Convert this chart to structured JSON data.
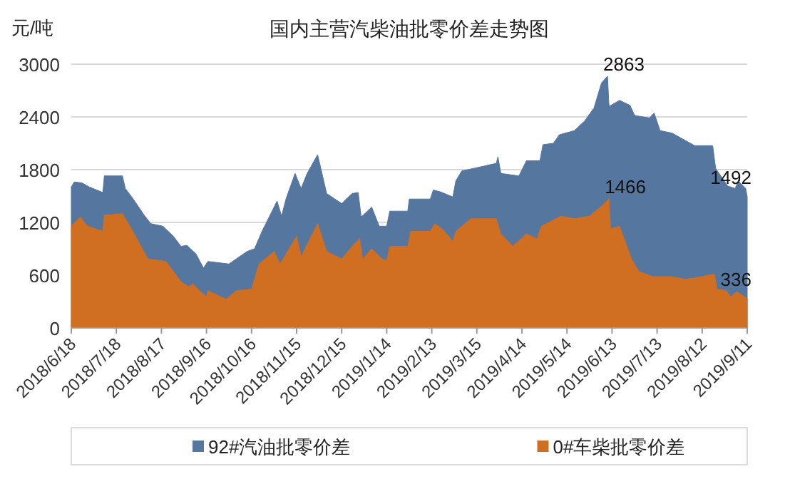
{
  "chart_data": {
    "type": "area",
    "title": "国内主营汽柴油批零价差走势图",
    "ylabel": "元/吨",
    "legend": "bottom",
    "grid": "y",
    "xlim": [
      "2018-06-18",
      "2019-09-11"
    ],
    "xticks": [
      {
        "value": "2018-06-18",
        "label": "2018/6/18"
      },
      {
        "value": "2018-07-18",
        "label": "2018/7/18"
      },
      {
        "value": "2018-08-17",
        "label": "2018/8/17"
      },
      {
        "value": "2018-09-16",
        "label": "2018/9/16"
      },
      {
        "value": "2018-10-16",
        "label": "2018/10/16"
      },
      {
        "value": "2018-11-15",
        "label": "2018/11/15"
      },
      {
        "value": "2018-12-15",
        "label": "2018/12/15"
      },
      {
        "value": "2019-01-14",
        "label": "2019/1/14"
      },
      {
        "value": "2019-02-13",
        "label": "2019/2/13"
      },
      {
        "value": "2019-03-15",
        "label": "2019/3/15"
      },
      {
        "value": "2019-04-14",
        "label": "2019/4/14"
      },
      {
        "value": "2019-05-14",
        "label": "2019/5/14"
      },
      {
        "value": "2019-06-13",
        "label": "2019/6/13"
      },
      {
        "value": "2019-07-13",
        "label": "2019/7/13"
      },
      {
        "value": "2019-08-12",
        "label": "2019/8/12"
      },
      {
        "value": "2019-09-11",
        "label": "2019/9/11"
      }
    ],
    "ylim": [
      0,
      3000
    ],
    "yticks": [
      0,
      600,
      1200,
      1800,
      2400,
      3000
    ],
    "series": [
      {
        "name": "92#汽油批零价差",
        "color": "#55779f",
        "x": [
          "2018-06-18",
          "2018-06-20",
          "2018-06-25",
          "2018-06-30",
          "2018-07-09",
          "2018-07-10",
          "2018-07-22",
          "2018-07-24",
          "2018-07-29",
          "2018-08-06",
          "2018-08-10",
          "2018-08-18",
          "2018-08-25",
          "2018-08-30",
          "2018-09-03",
          "2018-09-09",
          "2018-09-14",
          "2018-09-17",
          "2018-10-01",
          "2018-10-13",
          "2018-10-18",
          "2018-10-23",
          "2018-10-28",
          "2018-11-02",
          "2018-11-05",
          "2018-11-08",
          "2018-11-14",
          "2018-11-18",
          "2018-11-22",
          "2018-11-29",
          "2018-12-05",
          "2018-12-10",
          "2018-12-15",
          "2018-12-22",
          "2018-12-26",
          "2018-12-28",
          "2019-01-04",
          "2019-01-09",
          "2019-01-14",
          "2019-01-16",
          "2019-01-28",
          "2019-01-29",
          "2019-02-12",
          "2019-02-14",
          "2019-02-19",
          "2019-02-27",
          "2019-03-01",
          "2019-03-05",
          "2019-03-13",
          "2019-03-28",
          "2019-03-29",
          "2019-03-31",
          "2019-04-12",
          "2019-04-17",
          "2019-04-26",
          "2019-04-28",
          "2019-05-05",
          "2019-05-09",
          "2019-05-19",
          "2019-05-26",
          "2019-06-01",
          "2019-06-06",
          "2019-06-10",
          "2019-06-11",
          "2019-06-18",
          "2019-06-25",
          "2019-06-28",
          "2019-07-08",
          "2019-07-11",
          "2019-07-15",
          "2019-07-23",
          "2019-08-01",
          "2019-08-07",
          "2019-08-19",
          "2019-08-21",
          "2019-08-29",
          "2019-09-03",
          "2019-09-05",
          "2019-09-10",
          "2019-09-11"
        ],
        "values": [
          1603,
          1660,
          1650,
          1603,
          1540,
          1729,
          1729,
          1586,
          1471,
          1271,
          1185,
          1157,
          1042,
          928,
          939,
          842,
          681,
          756,
          727,
          870,
          899,
          1099,
          1271,
          1443,
          1271,
          1471,
          1757,
          1586,
          1757,
          1970,
          1529,
          1471,
          1414,
          1529,
          1540,
          1260,
          1374,
          1157,
          1157,
          1328,
          1328,
          1466,
          1466,
          1569,
          1546,
          1489,
          1672,
          1786,
          1815,
          1872,
          1947,
          1757,
          1729,
          1901,
          1901,
          2084,
          2101,
          2198,
          2244,
          2358,
          2502,
          2788,
          2863,
          2519,
          2588,
          2531,
          2416,
          2388,
          2445,
          2244,
          2216,
          2130,
          2073,
          2073,
          1815,
          1614,
          1586,
          1672,
          1586,
          1492
        ]
      },
      {
        "name": "0#车柴批零价差",
        "color": "#d06e22",
        "x": [
          "2018-06-18",
          "2018-06-24",
          "2018-06-29",
          "2018-07-09",
          "2018-07-10",
          "2018-07-22",
          "2018-07-29",
          "2018-08-08",
          "2018-08-20",
          "2018-08-30",
          "2018-09-04",
          "2018-09-07",
          "2018-09-12",
          "2018-09-16",
          "2018-09-17",
          "2018-09-29",
          "2018-10-06",
          "2018-10-16",
          "2018-10-21",
          "2018-10-31",
          "2018-11-04",
          "2018-11-15",
          "2018-11-18",
          "2018-11-29",
          "2018-12-05",
          "2018-12-15",
          "2018-12-22",
          "2018-12-27",
          "2018-12-29",
          "2019-01-04",
          "2019-01-11",
          "2019-01-14",
          "2019-01-16",
          "2019-01-28",
          "2019-01-30",
          "2019-02-12",
          "2019-02-15",
          "2019-02-20",
          "2019-02-27",
          "2019-03-01",
          "2019-03-11",
          "2019-03-28",
          "2019-03-31",
          "2019-04-08",
          "2019-04-17",
          "2019-04-24",
          "2019-04-27",
          "2019-05-10",
          "2019-05-19",
          "2019-05-29",
          "2019-06-06",
          "2019-06-11",
          "2019-06-12",
          "2019-06-18",
          "2019-06-26",
          "2019-07-01",
          "2019-07-10",
          "2019-07-22",
          "2019-08-01",
          "2019-08-07",
          "2019-08-20",
          "2019-08-22",
          "2019-08-28",
          "2019-08-31",
          "2019-09-04",
          "2019-09-11"
        ],
        "values": [
          1157,
          1260,
          1157,
          1099,
          1282,
          1300,
          1099,
          784,
          756,
          527,
          469,
          498,
          412,
          355,
          424,
          326,
          424,
          441,
          727,
          870,
          727,
          1042,
          813,
          1185,
          870,
          784,
          928,
          1013,
          784,
          899,
          784,
          767,
          928,
          928,
          1099,
          1099,
          1185,
          1128,
          985,
          1099,
          1242,
          1242,
          1071,
          928,
          1071,
          1013,
          1157,
          1271,
          1242,
          1271,
          1386,
          1466,
          1128,
          1157,
          784,
          641,
          584,
          584,
          555,
          567,
          613,
          441,
          424,
          355,
          412,
          336
        ]
      }
    ],
    "annotations": [
      {
        "text": "2863",
        "x": "2019-06-10",
        "y": 2863
      },
      {
        "text": "1492",
        "x": "2019-09-11",
        "y": 1492
      },
      {
        "text": "1466",
        "x": "2019-06-11",
        "y": 1466
      },
      {
        "text": "336",
        "x": "2019-09-11",
        "y": 336
      }
    ]
  }
}
